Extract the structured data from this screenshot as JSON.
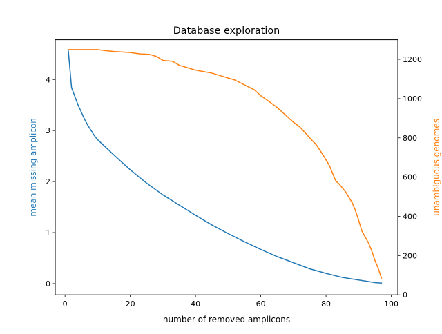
{
  "chart_data": {
    "type": "line",
    "title": "Database exploration",
    "xlabel": "number of removed amplicons",
    "ylabel_left": "mean missing amplicon",
    "ylabel_right": "unambiguous genomes",
    "xlim": [
      -3,
      102
    ],
    "ylim_left": [
      -0.22,
      4.78
    ],
    "ylim_right": [
      0,
      1300
    ],
    "x_ticks": [
      0,
      20,
      40,
      60,
      80,
      100
    ],
    "y_ticks_left": [
      0,
      1,
      2,
      3,
      4
    ],
    "y_ticks_right": [
      0,
      200,
      400,
      600,
      800,
      1000,
      1200
    ],
    "grid": false,
    "legend": "none",
    "colors": {
      "left_series": "#1f77b4",
      "right_series": "#ff7f0e",
      "axes": "#000000"
    },
    "series": [
      {
        "axis": "left",
        "x": [
          1,
          2,
          3,
          4,
          5,
          6,
          7,
          8,
          9,
          10,
          12,
          15,
          20,
          25,
          30,
          35,
          40,
          45,
          50,
          55,
          60,
          65,
          70,
          75,
          80,
          85,
          90,
          95,
          97
        ],
        "y": [
          4.57,
          3.84,
          3.67,
          3.5,
          3.36,
          3.22,
          3.1,
          3.0,
          2.9,
          2.82,
          2.7,
          2.52,
          2.23,
          1.97,
          1.74,
          1.54,
          1.34,
          1.15,
          0.98,
          0.82,
          0.67,
          0.53,
          0.41,
          0.29,
          0.2,
          0.12,
          0.07,
          0.02,
          0.01
        ]
      },
      {
        "axis": "right",
        "x": [
          1,
          5,
          10,
          12,
          15,
          20,
          23,
          26,
          28,
          30,
          33,
          35,
          37,
          40,
          45,
          48,
          52,
          55,
          58,
          60,
          63,
          65,
          67,
          70,
          72,
          75,
          77,
          79,
          81,
          82,
          83,
          84,
          86,
          88,
          89,
          90,
          91,
          93,
          94,
          95,
          96,
          97
        ],
        "y": [
          1250,
          1250,
          1250,
          1245,
          1240,
          1235,
          1228,
          1225,
          1215,
          1195,
          1190,
          1170,
          1160,
          1145,
          1130,
          1115,
          1095,
          1070,
          1045,
          1015,
          980,
          955,
          925,
          880,
          855,
          800,
          765,
          715,
          660,
          620,
          580,
          565,
          525,
          470,
          430,
          380,
          325,
          265,
          225,
          175,
          135,
          85
        ]
      }
    ]
  }
}
